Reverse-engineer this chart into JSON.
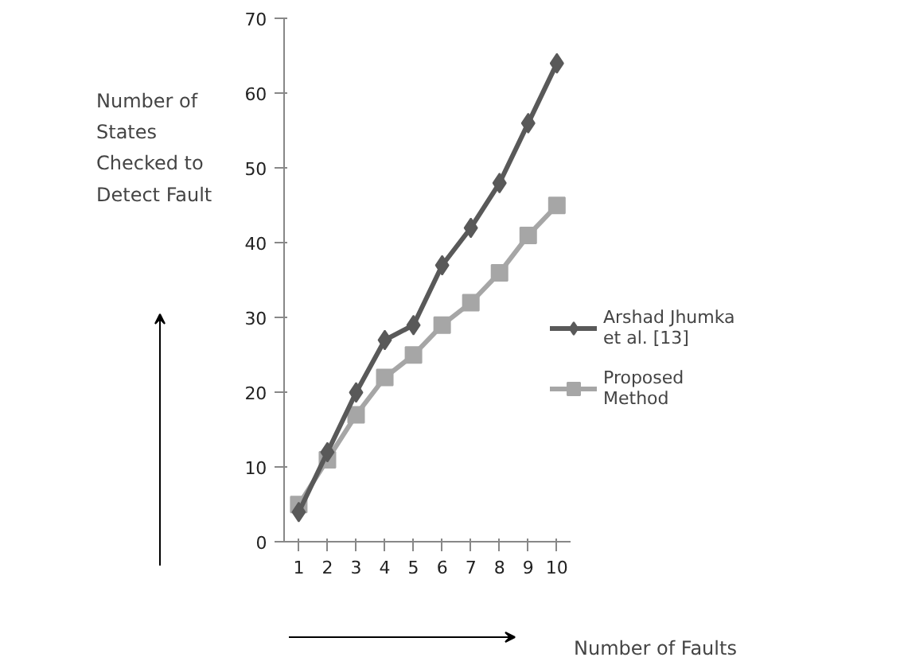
{
  "chart_data": {
    "type": "line",
    "categories": [
      "1",
      "2",
      "3",
      "4",
      "5",
      "6",
      "7",
      "8",
      "9",
      "10"
    ],
    "xlabel": "Number of Faults",
    "ylabel": "Number of States Checked to Detect Fault",
    "ylim": [
      0,
      70
    ],
    "yticks": [
      0,
      10,
      20,
      30,
      40,
      50,
      60,
      70
    ],
    "grid": false,
    "legend": "right",
    "series": [
      {
        "name": "Arshad Jhumka et al. [13]",
        "color": "#595959",
        "marker": "diamond",
        "values": [
          4,
          12,
          20,
          27,
          29,
          37,
          42,
          48,
          56,
          64
        ]
      },
      {
        "name": "Proposed Method",
        "color": "#a6a6a6",
        "marker": "square",
        "values": [
          5,
          11,
          17,
          22,
          25,
          29,
          32,
          36,
          41,
          45
        ]
      }
    ]
  }
}
